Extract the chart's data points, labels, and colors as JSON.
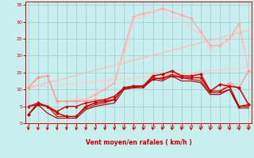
{
  "background_color": "#c8eeed",
  "grid_color": "#99cccc",
  "xlabel": "Vent moyen/en rafales ( km/h )",
  "ylabel_ticks": [
    0,
    5,
    10,
    15,
    20,
    25,
    30,
    35
  ],
  "xticks": [
    0,
    1,
    2,
    3,
    4,
    5,
    6,
    7,
    8,
    9,
    10,
    11,
    12,
    13,
    14,
    15,
    16,
    17,
    18,
    19,
    20,
    21,
    22,
    23
  ],
  "xlim": [
    -0.3,
    23.3
  ],
  "ylim": [
    0,
    36
  ],
  "series": [
    {
      "x": [
        0,
        23
      ],
      "y": [
        10.5,
        27.5
      ],
      "color": "#ffbbbb",
      "lw": 0.9,
      "marker": null,
      "ms": 0
    },
    {
      "x": [
        0,
        23
      ],
      "y": [
        10.5,
        16.5
      ],
      "color": "#ffcccc",
      "lw": 0.9,
      "marker": null,
      "ms": 0
    },
    {
      "x": [
        0,
        1,
        2,
        3,
        4,
        5,
        6,
        7,
        8,
        9,
        10,
        11,
        12,
        13,
        14,
        15,
        16,
        17,
        18,
        19,
        20,
        21,
        22,
        23
      ],
      "y": [
        10.5,
        13.5,
        14,
        6.5,
        6.5,
        7,
        7,
        8.5,
        10,
        12,
        22,
        31.5,
        32.5,
        33,
        34,
        33,
        32,
        31,
        27,
        23,
        23,
        25,
        29.5,
        15.5
      ],
      "color": "#ffaaaa",
      "lw": 1.0,
      "marker": "D",
      "ms": 2.0
    },
    {
      "x": [
        0,
        1,
        2,
        3,
        4,
        5,
        6,
        7,
        8,
        9,
        10,
        11,
        12,
        13,
        14,
        15,
        16,
        17,
        18,
        19,
        20,
        21,
        22,
        23
      ],
      "y": [
        10.5,
        13.5,
        14,
        6.5,
        6.5,
        7,
        7,
        9,
        11.5,
        14,
        20,
        30.5,
        31.5,
        33,
        33.5,
        31,
        31,
        28,
        26.5,
        21.5,
        24,
        24,
        28,
        16
      ],
      "color": "#ffcccc",
      "lw": 0.9,
      "marker": null,
      "ms": 0
    },
    {
      "x": [
        0,
        1,
        2,
        3,
        4,
        5,
        6,
        7,
        8,
        9,
        10,
        11,
        12,
        13,
        14,
        15,
        16,
        17,
        18,
        19,
        20,
        21,
        22,
        23
      ],
      "y": [
        10.5,
        13.5,
        14,
        6.5,
        6.5,
        6.5,
        6.5,
        7,
        7,
        7.5,
        10.5,
        11,
        11,
        13.5,
        13,
        15.5,
        13.5,
        13,
        13,
        9.5,
        9.5,
        12,
        10.5,
        15.5
      ],
      "color": "#ff9999",
      "lw": 1.0,
      "marker": "D",
      "ms": 2.0
    },
    {
      "x": [
        0,
        1,
        2,
        3,
        4,
        5,
        6,
        7,
        8,
        9,
        10,
        11,
        12,
        13,
        14,
        15,
        16,
        17,
        18,
        19,
        20,
        21,
        22,
        23
      ],
      "y": [
        5,
        5.5,
        5,
        3.5,
        5,
        5,
        6,
        6.5,
        7,
        8,
        10.5,
        11,
        11,
        13,
        13.5,
        14,
        13.5,
        13.5,
        13.5,
        9.5,
        9.5,
        11,
        5,
        5.5
      ],
      "color": "#cc0000",
      "lw": 1.0,
      "marker": "^",
      "ms": 2.2
    },
    {
      "x": [
        0,
        1,
        2,
        3,
        4,
        5,
        6,
        7,
        8,
        9,
        10,
        11,
        12,
        13,
        14,
        15,
        16,
        17,
        18,
        19,
        20,
        21,
        22,
        23
      ],
      "y": [
        2.5,
        6,
        5,
        3,
        2,
        2,
        5,
        6,
        6.5,
        7,
        10.5,
        11,
        11,
        14,
        14.5,
        15.5,
        14,
        14,
        14.5,
        9.5,
        11.5,
        11,
        10.5,
        5.5
      ],
      "color": "#cc0000",
      "lw": 1.1,
      "marker": "D",
      "ms": 2.2
    },
    {
      "x": [
        0,
        1,
        2,
        3,
        4,
        5,
        6,
        7,
        8,
        9,
        10,
        11,
        12,
        13,
        14,
        15,
        16,
        17,
        18,
        19,
        20,
        21,
        22,
        23
      ],
      "y": [
        5,
        6,
        5,
        2,
        2,
        2,
        4.5,
        5.5,
        6,
        7,
        10.5,
        10.5,
        11,
        13.5,
        13,
        14.5,
        13.5,
        13,
        12.5,
        9,
        9,
        10,
        5,
        5
      ],
      "color": "#cc0000",
      "lw": 0.8,
      "marker": null,
      "ms": 0
    },
    {
      "x": [
        0,
        1,
        2,
        3,
        4,
        5,
        6,
        7,
        8,
        9,
        10,
        11,
        12,
        13,
        14,
        15,
        16,
        17,
        18,
        19,
        20,
        21,
        22,
        23
      ],
      "y": [
        2.5,
        5.5,
        3,
        1.5,
        1.5,
        1.5,
        4,
        5,
        5.5,
        6,
        10,
        10.5,
        10.5,
        13,
        12.5,
        14,
        12.5,
        12.5,
        12,
        8.5,
        8.5,
        10,
        4.5,
        4.5
      ],
      "color": "#990000",
      "lw": 0.8,
      "marker": null,
      "ms": 0
    }
  ]
}
